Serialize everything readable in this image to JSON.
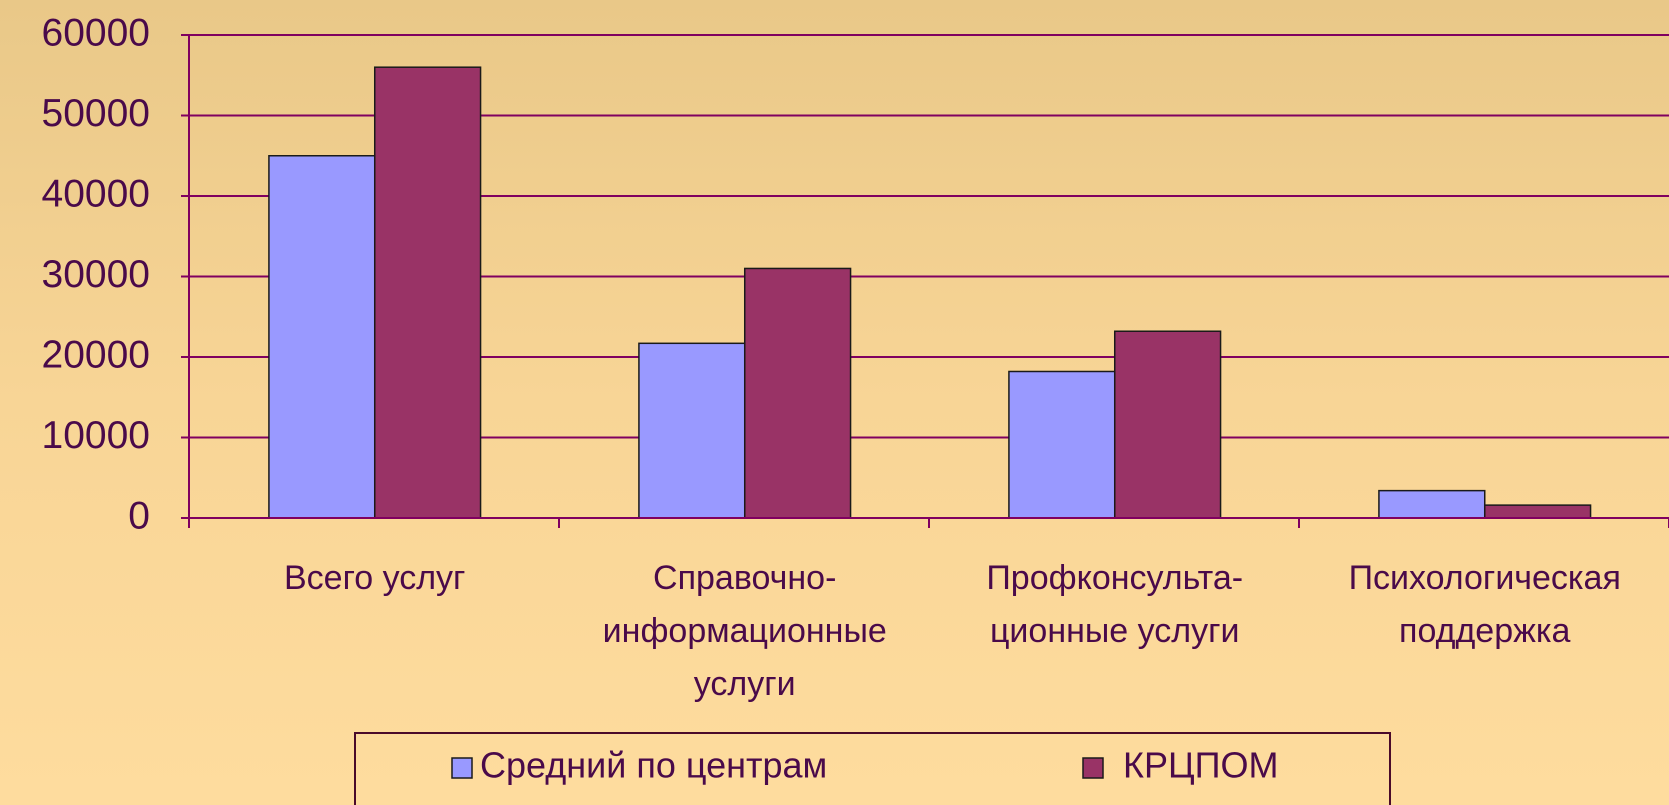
{
  "chart_data": {
    "type": "bar",
    "categories": [
      "Всего услуг",
      "Справочно-\nинформационные\nуслуги",
      "Профконсульта-\nционные услуги",
      "Психологическая\nподдержка"
    ],
    "series": [
      {
        "name": "Средний по центрам",
        "color": "#9999ff",
        "values": [
          45000,
          21700,
          18200,
          3400
        ]
      },
      {
        "name": "КРЦПОМ",
        "color": "#993366",
        "values": [
          56000,
          31000,
          23200,
          1600
        ]
      }
    ],
    "ylim": [
      0,
      60000
    ],
    "yticks": [
      0,
      10000,
      20000,
      30000,
      40000,
      50000,
      60000
    ],
    "grid": true,
    "legend": "bottom"
  }
}
